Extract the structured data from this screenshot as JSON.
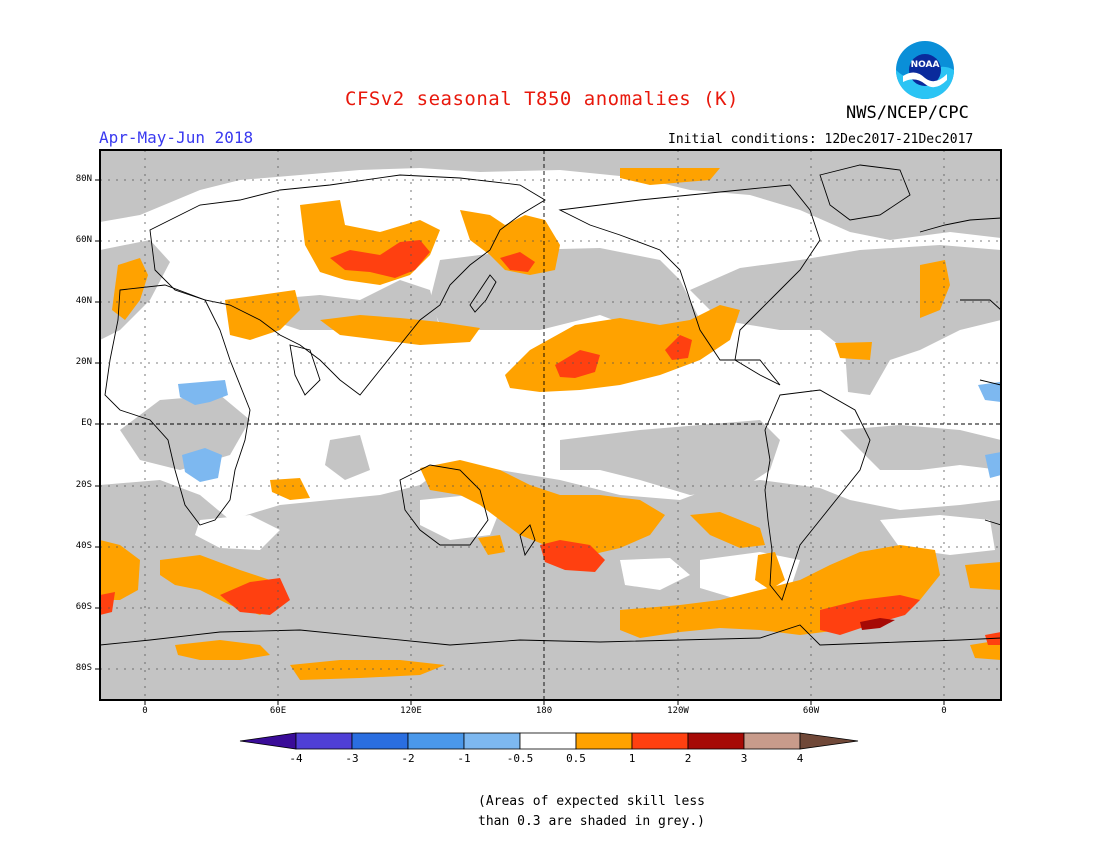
{
  "header": {
    "title": "CFSv2 seasonal T850 anomalies (K)",
    "org": "NWS/NCEP/CPC",
    "season": "Apr-May-Jun 2018",
    "initial_conditions": "Initial conditions: 12Dec2017-21Dec2017",
    "logo_text": "NOAA"
  },
  "map": {
    "lat_labels": [
      "80N",
      "60N",
      "40N",
      "20N",
      "EQ",
      "20S",
      "40S",
      "60S",
      "80S"
    ],
    "lon_labels": [
      "0",
      "60E",
      "120E",
      "180",
      "120W",
      "60W",
      "0"
    ]
  },
  "colorbar": {
    "labels": [
      "-4",
      "-3",
      "-2",
      "-1",
      "-0.5",
      "0.5",
      "1",
      "2",
      "3",
      "4"
    ],
    "colors": {
      "lt_minus4": "#3a0c98",
      "m4_m3": "#4f3fd6",
      "m3_m2": "#2a6ee0",
      "m2_m1": "#4a98ea",
      "m1_m05": "#7db8f0",
      "m05_05": "#ffffff",
      "p05_1": "#ffa200",
      "p1_2": "#ff4010",
      "p2_3": "#a60a06",
      "p3_4": "#c89b8b",
      "gt4": "#704838"
    }
  },
  "note": {
    "line1": "(Areas of expected skill less",
    "line2": "than 0.3 are shaded in grey.)"
  },
  "legend_colors": {
    "low_skill_grey": "#c4c4c4",
    "warm_05_1": "#ffa200",
    "warm_1_2": "#ff4010",
    "warm_2_3": "#a60a06",
    "cool_m1_m05": "#7db8f0"
  }
}
